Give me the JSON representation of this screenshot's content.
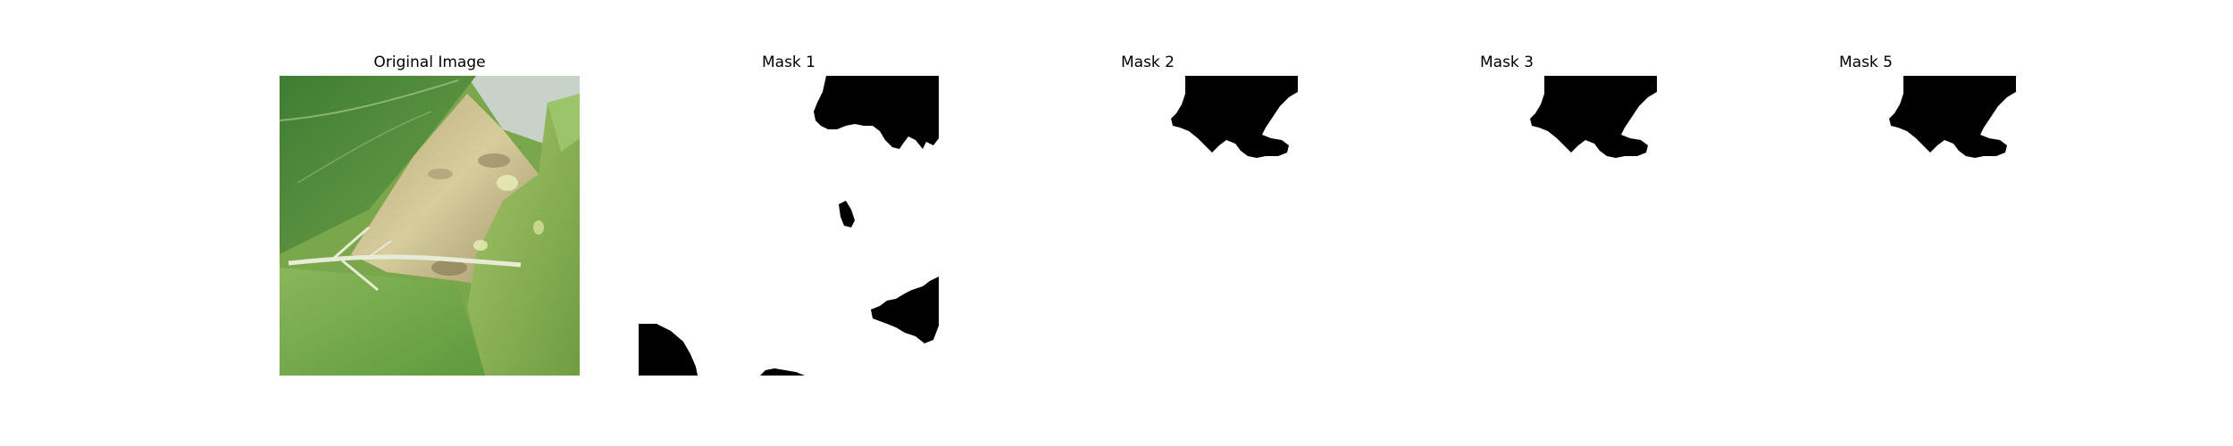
{
  "panels": [
    {
      "title": "Original Image",
      "kind": "photo"
    },
    {
      "title": "Mask 1",
      "kind": "mask"
    },
    {
      "title": "Mask 2",
      "kind": "mask"
    },
    {
      "title": "Mask 3",
      "kind": "mask"
    },
    {
      "title": "Mask 5",
      "kind": "mask"
    }
  ],
  "colors": {
    "background": "#ffffff",
    "mask_fill": "#000000",
    "mask_background": "#ffffff",
    "leaf_dark": "#4e8a3a",
    "leaf_light": "#8fb55a",
    "lesion": "#c8b98a",
    "vein": "#e6ecd6"
  }
}
